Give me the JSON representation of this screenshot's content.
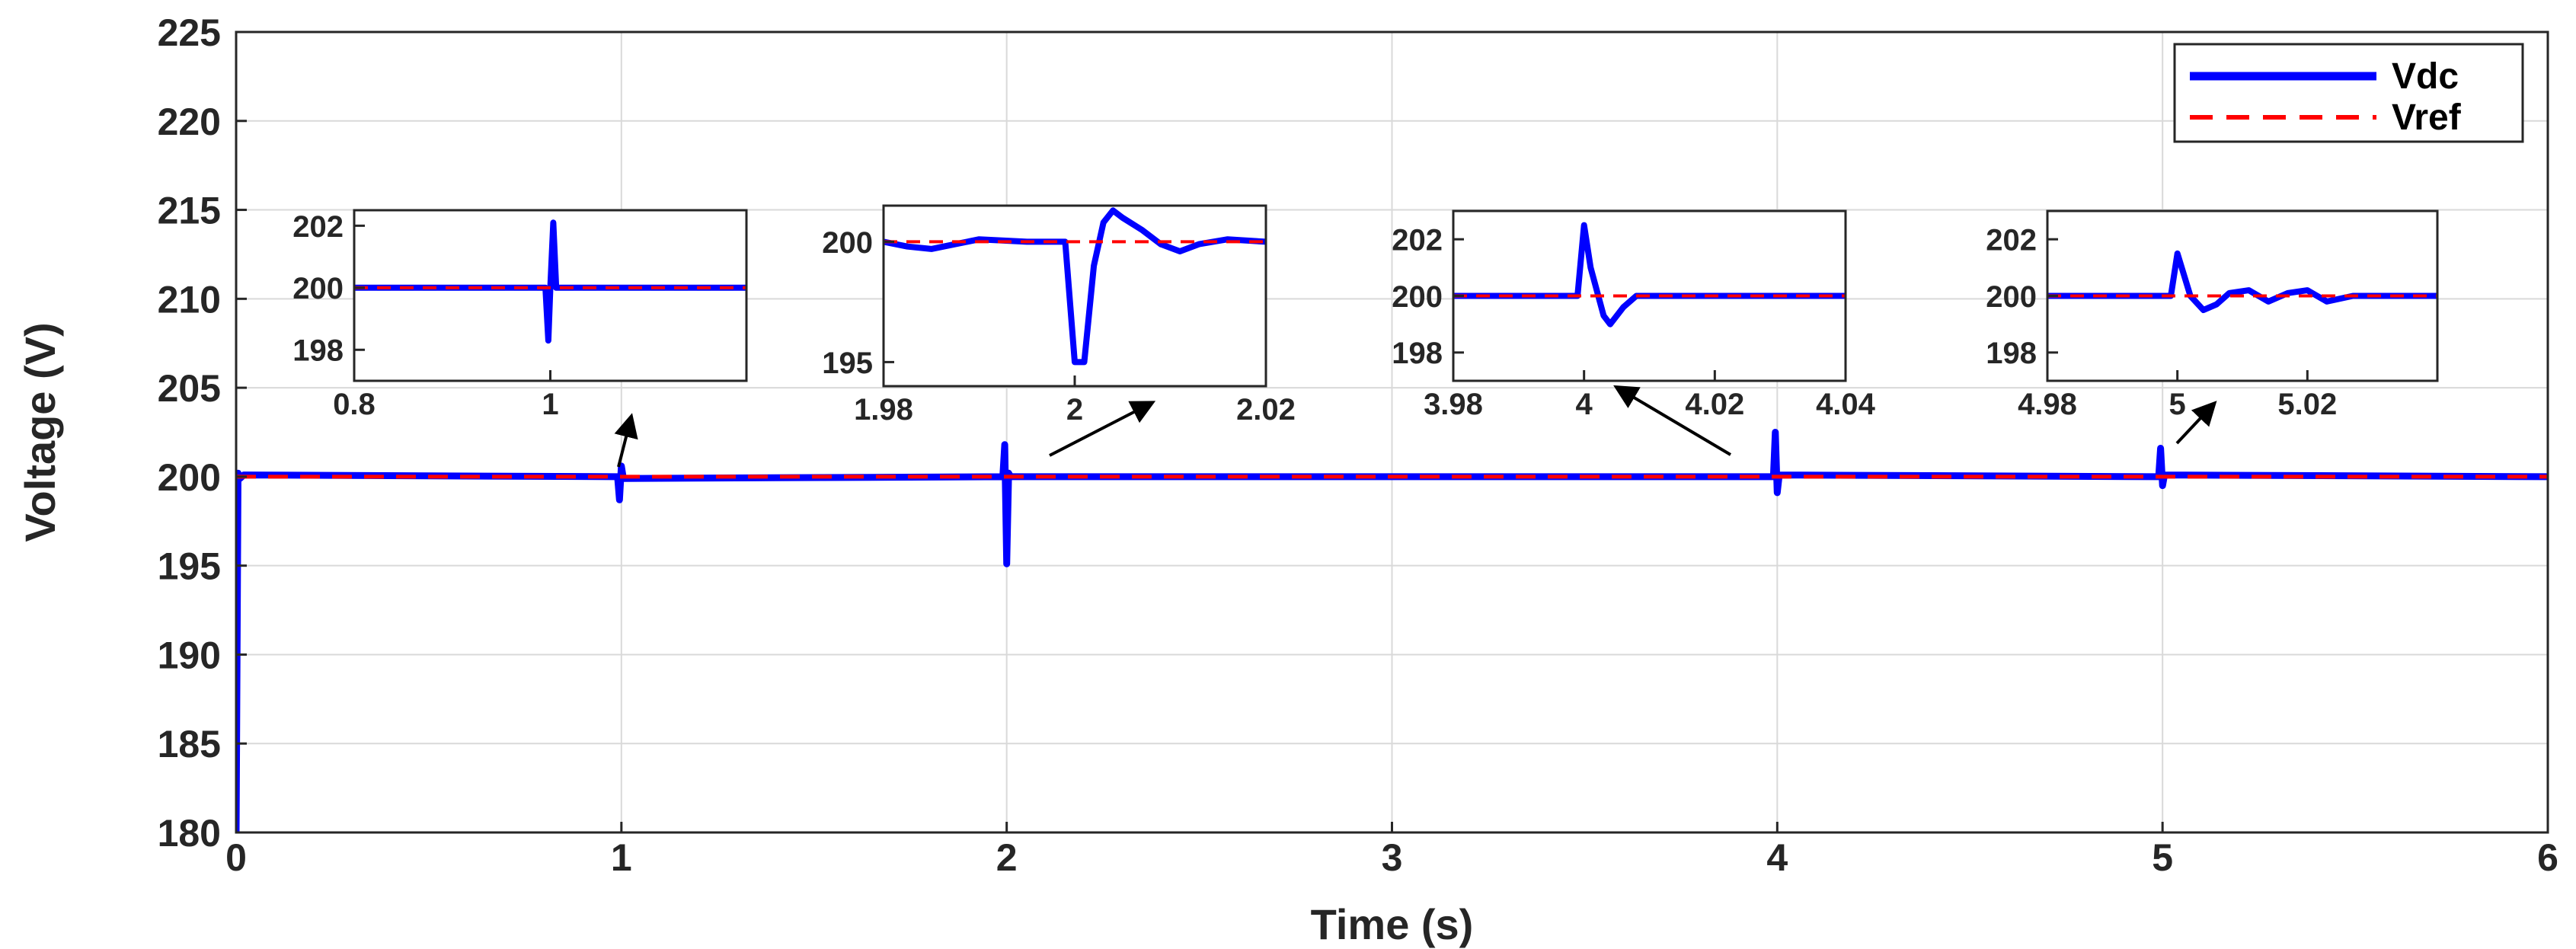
{
  "colors": {
    "vdc": "#0000ff",
    "vref": "#ff0000",
    "grid": "#d9d9d9",
    "axis": "#262626"
  },
  "chart_data": [
    {
      "id": "main",
      "type": "line",
      "xlabel": "Time (s)",
      "ylabel": "Voltage (V)",
      "xlim": [
        0,
        6
      ],
      "ylim": [
        180,
        225
      ],
      "xticks": [
        0,
        1,
        2,
        3,
        4,
        5,
        6
      ],
      "yticks": [
        180,
        185,
        190,
        195,
        200,
        205,
        210,
        215,
        220,
        225
      ],
      "xtick_labels": [
        "0",
        "1",
        "2",
        "3",
        "4",
        "5",
        "6"
      ],
      "ytick_labels": [
        "180",
        "185",
        "190",
        "195",
        "200",
        "205",
        "210",
        "215",
        "220",
        "225"
      ],
      "grid": true,
      "legend": {
        "position": "top-right",
        "entries": [
          "Vdc",
          "Vref"
        ]
      },
      "series": [
        {
          "name": "Vdc",
          "style": "solid",
          "points": [
            [
              0,
              180
            ],
            [
              0.005,
              200.2
            ],
            [
              0.01,
              199.9
            ],
            [
              0.02,
              200.1
            ],
            [
              0.99,
              200.0
            ],
            [
              0.995,
              198.7
            ],
            [
              1.0,
              200.6
            ],
            [
              1.005,
              199.9
            ],
            [
              1.99,
              200.0
            ],
            [
              1.995,
              201.8
            ],
            [
              2.0,
              195.1
            ],
            [
              2.005,
              200.2
            ],
            [
              2.01,
              200.0
            ],
            [
              3.99,
              200.0
            ],
            [
              3.995,
              202.5
            ],
            [
              4.0,
              199.1
            ],
            [
              4.005,
              200.1
            ],
            [
              4.99,
              200.0
            ],
            [
              4.995,
              201.6
            ],
            [
              5.0,
              199.5
            ],
            [
              5.005,
              200.1
            ],
            [
              6.0,
              200.0
            ]
          ]
        },
        {
          "name": "Vref",
          "style": "dashed",
          "points": [
            [
              0,
              200
            ],
            [
              6,
              200
            ]
          ]
        }
      ]
    },
    {
      "id": "inset1",
      "type": "line",
      "xlim": [
        0.8,
        1.2
      ],
      "ylim": [
        197,
        202.5
      ],
      "xticks": [
        0.8,
        1
      ],
      "yticks": [
        198,
        200,
        202
      ],
      "xtick_labels": [
        "0.8",
        "1"
      ],
      "ytick_labels": [
        "198",
        "200",
        "202"
      ],
      "series": [
        {
          "name": "Vdc",
          "style": "solid",
          "points": [
            [
              0.8,
              200.0
            ],
            [
              0.995,
              200.0
            ],
            [
              0.998,
              198.3
            ],
            [
              1.0,
              200.0
            ],
            [
              1.003,
              202.1
            ],
            [
              1.006,
              200.0
            ],
            [
              1.2,
              200.0
            ]
          ]
        },
        {
          "name": "Vref",
          "style": "dashed",
          "points": [
            [
              0.8,
              200
            ],
            [
              1.2,
              200
            ]
          ]
        }
      ]
    },
    {
      "id": "inset2",
      "type": "line",
      "xlim": [
        1.98,
        2.02
      ],
      "ylim": [
        194,
        201.5
      ],
      "xticks": [
        1.98,
        2,
        2.02
      ],
      "yticks": [
        195,
        200
      ],
      "xtick_labels": [
        "1.98",
        "2",
        "2.02"
      ],
      "ytick_labels": [
        "195",
        "200"
      ],
      "series": [
        {
          "name": "Vdc",
          "style": "solid",
          "points": [
            [
              1.98,
              200.0
            ],
            [
              1.9825,
              199.8
            ],
            [
              1.985,
              199.7
            ],
            [
              1.9875,
              199.9
            ],
            [
              1.99,
              200.1
            ],
            [
              1.995,
              200.0
            ],
            [
              1.999,
              200.0
            ],
            [
              2.0,
              195.0
            ],
            [
              2.001,
              195.0
            ],
            [
              2.002,
              199.0
            ],
            [
              2.003,
              200.8
            ],
            [
              2.004,
              201.3
            ],
            [
              2.005,
              201.0
            ],
            [
              2.007,
              200.5
            ],
            [
              2.009,
              199.9
            ],
            [
              2.011,
              199.6
            ],
            [
              2.013,
              199.9
            ],
            [
              2.016,
              200.1
            ],
            [
              2.02,
              200.0
            ]
          ]
        },
        {
          "name": "Vref",
          "style": "dashed",
          "points": [
            [
              1.98,
              200
            ],
            [
              2.02,
              200
            ]
          ]
        }
      ]
    },
    {
      "id": "inset3",
      "type": "line",
      "xlim": [
        3.98,
        4.04
      ],
      "ylim": [
        197,
        203
      ],
      "xticks": [
        3.98,
        4,
        4.02,
        4.04
      ],
      "yticks": [
        198,
        200,
        202
      ],
      "xtick_labels": [
        "3.98",
        "4",
        "4.02",
        "4.04"
      ],
      "ytick_labels": [
        "198",
        "200",
        "202"
      ],
      "series": [
        {
          "name": "Vdc",
          "style": "solid",
          "points": [
            [
              3.98,
              200.0
            ],
            [
              3.999,
              200.0
            ],
            [
              4.0,
              202.5
            ],
            [
              4.001,
              201.0
            ],
            [
              4.003,
              199.3
            ],
            [
              4.004,
              199.0
            ],
            [
              4.006,
              199.6
            ],
            [
              4.008,
              200.0
            ],
            [
              4.04,
              200.0
            ]
          ]
        },
        {
          "name": "Vref",
          "style": "dashed",
          "points": [
            [
              3.98,
              200
            ],
            [
              4.04,
              200
            ]
          ]
        }
      ]
    },
    {
      "id": "inset4",
      "type": "line",
      "xlim": [
        4.98,
        5.04
      ],
      "ylim": [
        197,
        203
      ],
      "xticks": [
        4.98,
        5,
        5.02
      ],
      "yticks": [
        198,
        200,
        202
      ],
      "xtick_labels": [
        "4.98",
        "5",
        "5.02"
      ],
      "ytick_labels": [
        "198",
        "200",
        "202"
      ],
      "series": [
        {
          "name": "Vdc",
          "style": "solid",
          "points": [
            [
              4.98,
              200.0
            ],
            [
              4.999,
              200.0
            ],
            [
              5.0,
              201.5
            ],
            [
              5.002,
              200.0
            ],
            [
              5.004,
              199.5
            ],
            [
              5.006,
              199.7
            ],
            [
              5.008,
              200.1
            ],
            [
              5.011,
              200.2
            ],
            [
              5.014,
              199.8
            ],
            [
              5.017,
              200.1
            ],
            [
              5.02,
              200.2
            ],
            [
              5.023,
              199.8
            ],
            [
              5.027,
              200.0
            ],
            [
              5.04,
              200.0
            ]
          ]
        },
        {
          "name": "Vref",
          "style": "dashed",
          "points": [
            [
              4.98,
              200
            ],
            [
              5.04,
              200
            ]
          ]
        }
      ]
    }
  ]
}
